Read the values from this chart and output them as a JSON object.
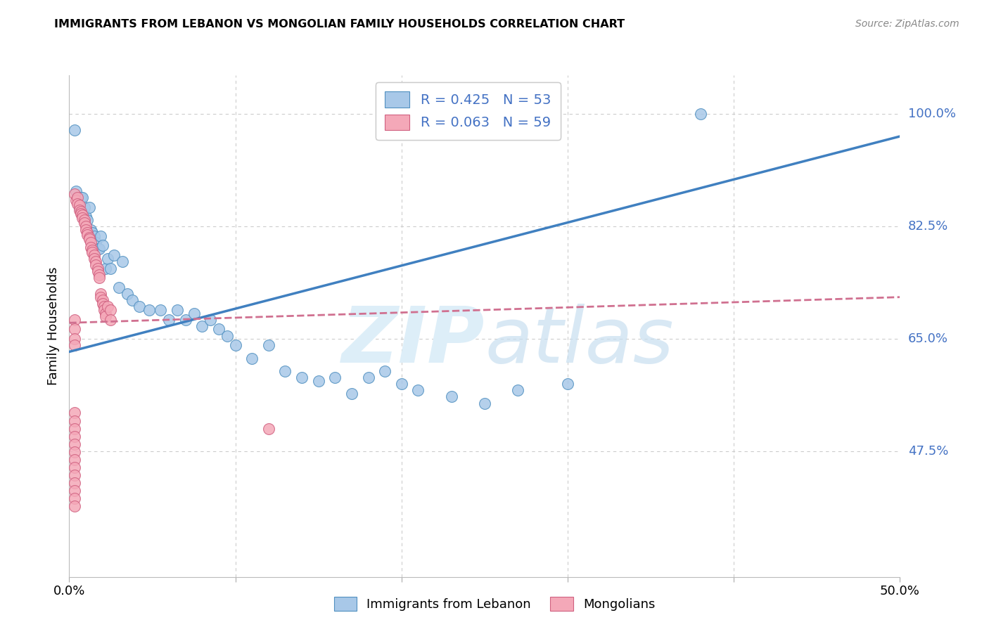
{
  "title": "IMMIGRANTS FROM LEBANON VS MONGOLIAN FAMILY HOUSEHOLDS CORRELATION CHART",
  "source": "Source: ZipAtlas.com",
  "ylabel": "Family Households",
  "ytick_labels": [
    "100.0%",
    "82.5%",
    "65.0%",
    "47.5%"
  ],
  "ytick_values": [
    1.0,
    0.825,
    0.65,
    0.475
  ],
  "xlim": [
    0.0,
    0.5
  ],
  "ylim": [
    0.28,
    1.06
  ],
  "legend_blue_r": "R = 0.425",
  "legend_blue_n": "N = 53",
  "legend_pink_r": "R = 0.063",
  "legend_pink_n": "N = 59",
  "legend_label_blue": "Immigrants from Lebanon",
  "legend_label_pink": "Mongolians",
  "blue_scatter_x": [
    0.003,
    0.004,
    0.006,
    0.007,
    0.008,
    0.009,
    0.01,
    0.011,
    0.012,
    0.013,
    0.014,
    0.015,
    0.016,
    0.017,
    0.018,
    0.019,
    0.02,
    0.022,
    0.023,
    0.025,
    0.027,
    0.03,
    0.032,
    0.035,
    0.038,
    0.042,
    0.048,
    0.055,
    0.06,
    0.065,
    0.07,
    0.075,
    0.08,
    0.085,
    0.09,
    0.095,
    0.1,
    0.11,
    0.12,
    0.13,
    0.14,
    0.15,
    0.16,
    0.17,
    0.18,
    0.19,
    0.2,
    0.21,
    0.23,
    0.25,
    0.27,
    0.3,
    0.38
  ],
  "blue_scatter_y": [
    0.975,
    0.88,
    0.855,
    0.87,
    0.87,
    0.855,
    0.84,
    0.835,
    0.855,
    0.82,
    0.815,
    0.81,
    0.8,
    0.79,
    0.79,
    0.81,
    0.795,
    0.76,
    0.775,
    0.76,
    0.78,
    0.73,
    0.77,
    0.72,
    0.71,
    0.7,
    0.695,
    0.695,
    0.68,
    0.695,
    0.68,
    0.69,
    0.67,
    0.68,
    0.665,
    0.655,
    0.64,
    0.62,
    0.64,
    0.6,
    0.59,
    0.585,
    0.59,
    0.565,
    0.59,
    0.6,
    0.58,
    0.57,
    0.56,
    0.55,
    0.57,
    0.58,
    1.0
  ],
  "pink_scatter_x": [
    0.003,
    0.004,
    0.005,
    0.005,
    0.006,
    0.006,
    0.007,
    0.007,
    0.008,
    0.008,
    0.009,
    0.009,
    0.01,
    0.01,
    0.011,
    0.011,
    0.012,
    0.012,
    0.013,
    0.013,
    0.014,
    0.014,
    0.015,
    0.015,
    0.016,
    0.016,
    0.017,
    0.017,
    0.018,
    0.018,
    0.019,
    0.019,
    0.02,
    0.02,
    0.021,
    0.021,
    0.022,
    0.022,
    0.023,
    0.025,
    0.003,
    0.003,
    0.003,
    0.003,
    0.003,
    0.003,
    0.003,
    0.003,
    0.003,
    0.003,
    0.003,
    0.003,
    0.003,
    0.003,
    0.003,
    0.003,
    0.003,
    0.12,
    0.025
  ],
  "pink_scatter_y": [
    0.875,
    0.865,
    0.87,
    0.86,
    0.858,
    0.85,
    0.848,
    0.845,
    0.842,
    0.838,
    0.835,
    0.83,
    0.825,
    0.82,
    0.815,
    0.812,
    0.808,
    0.805,
    0.8,
    0.792,
    0.788,
    0.785,
    0.78,
    0.775,
    0.77,
    0.765,
    0.76,
    0.755,
    0.75,
    0.745,
    0.72,
    0.715,
    0.71,
    0.705,
    0.7,
    0.695,
    0.69,
    0.685,
    0.7,
    0.695,
    0.68,
    0.665,
    0.65,
    0.64,
    0.535,
    0.522,
    0.51,
    0.498,
    0.486,
    0.474,
    0.462,
    0.45,
    0.438,
    0.426,
    0.414,
    0.402,
    0.39,
    0.51,
    0.68
  ],
  "blue_line_x": [
    0.0,
    0.5
  ],
  "blue_line_y": [
    0.63,
    0.965
  ],
  "pink_line_x": [
    0.0,
    0.5
  ],
  "pink_line_y": [
    0.675,
    0.715
  ],
  "blue_color": "#a8c8e8",
  "pink_color": "#f4a8b8",
  "blue_edge_color": "#5090c0",
  "pink_edge_color": "#d06080",
  "blue_line_color": "#4080c0",
  "pink_line_color": "#d07090",
  "grid_color": "#cccccc",
  "ytick_color": "#4472c4",
  "background_color": "#ffffff",
  "watermark_zip": "ZIP",
  "watermark_atlas": "atlas",
  "watermark_color": "#ddeef8"
}
